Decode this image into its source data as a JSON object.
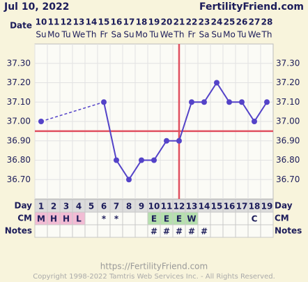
{
  "chart_data": {
    "type": "line",
    "title": "Jul 10, 2022",
    "brand": "FertilityFriend.com",
    "date_label": "Date",
    "categories": [
      "10",
      "11",
      "12",
      "13",
      "14",
      "15",
      "16",
      "17",
      "18",
      "19",
      "20",
      "21",
      "22",
      "23",
      "24",
      "25",
      "26",
      "27",
      "28"
    ],
    "weekdays": [
      "Su",
      "Mo",
      "Tu",
      "We",
      "Th",
      "Fr",
      "Sa",
      "Su",
      "Mo",
      "Tu",
      "We",
      "Th",
      "Fr",
      "Sa",
      "Su",
      "Mo",
      "Tu",
      "We",
      "Th"
    ],
    "series": [
      {
        "color": "#5443c8",
        "values": [
          37.0,
          null,
          null,
          null,
          null,
          37.1,
          36.8,
          36.7,
          36.8,
          36.8,
          36.9,
          36.9,
          37.1,
          37.1,
          37.2,
          37.1,
          37.1,
          37.0,
          37.1
        ]
      }
    ],
    "ylim": [
      36.6,
      37.4
    ],
    "yticks": [
      {
        "value": 36.7,
        "label": "36.70"
      },
      {
        "value": 36.8,
        "label": "36.80"
      },
      {
        "value": 36.9,
        "label": "36.90"
      },
      {
        "value": 37.0,
        "label": "37.00"
      },
      {
        "value": 37.1,
        "label": "37.10"
      },
      {
        "value": 37.2,
        "label": "37.20"
      },
      {
        "value": 37.3,
        "label": "37.30"
      }
    ],
    "grid": true,
    "coverline": 36.95,
    "ovulation_day": 12,
    "marker_color": "#e05060",
    "day_label": "Day",
    "cm_label": "CM",
    "notes_label": "Notes",
    "days": [
      1,
      2,
      3,
      4,
      5,
      6,
      7,
      8,
      9,
      10,
      11,
      12,
      13,
      14,
      15,
      16,
      17,
      18,
      19
    ],
    "cm": [
      "M",
      "H",
      "H",
      "L",
      null,
      "*",
      "*",
      null,
      null,
      "E",
      "E",
      "E",
      "W",
      null,
      null,
      null,
      null,
      "C",
      null
    ],
    "cm_colors": {
      "M": "#f2bcd4",
      "H": "#f2bcd4",
      "L": "#f2bcd4",
      "E": "#b6e0ae",
      "W": "#b6e0ae"
    },
    "notes": [
      null,
      null,
      null,
      null,
      null,
      null,
      null,
      null,
      null,
      "#",
      "#",
      "#",
      "#",
      "#",
      null,
      null,
      null,
      null,
      null
    ]
  },
  "footer": {
    "url": "https://FertilityFriend.com",
    "copyright": "Copyright 1998-2022 Tamtris Web Services Inc. - All Rights Reserved."
  }
}
